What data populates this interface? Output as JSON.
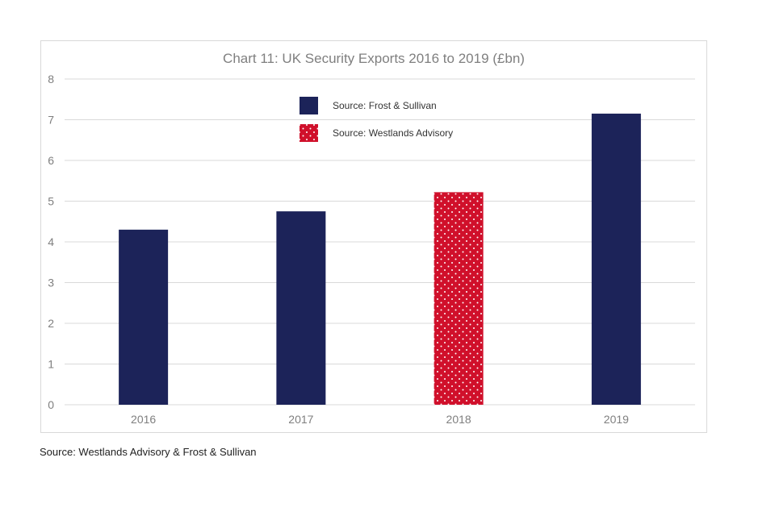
{
  "chart_data": {
    "type": "bar",
    "title": "Chart 11: UK Security Exports 2016 to 2019 (£bn)",
    "xlabel": "",
    "ylabel": "",
    "ylim": [
      0,
      8
    ],
    "yticks": [
      0,
      1,
      2,
      3,
      4,
      5,
      6,
      7,
      8
    ],
    "categories": [
      "2016",
      "2017",
      "2018",
      "2019"
    ],
    "values": [
      4.3,
      4.75,
      5.22,
      7.15
    ],
    "bar_source": [
      "Source: Frost & Sullivan",
      "Source: Frost & Sullivan",
      "Source: Westlands Advisory",
      "Source: Frost & Sullivan"
    ],
    "legend": [
      {
        "label": "Source: Frost & Sullivan",
        "color": "#1c2359",
        "pattern": "solid"
      },
      {
        "label": "Source: Westlands Advisory",
        "color": "#d0102b",
        "pattern": "dotted"
      }
    ],
    "legend_position": "top-center",
    "grid": true
  },
  "colors": {
    "frost": "#1c2359",
    "westlands": "#d0102b",
    "grid": "#d9d9d9",
    "axis_text": "#7f7f7f"
  },
  "footnote": "Source: Westlands Advisory & Frost & Sullivan"
}
